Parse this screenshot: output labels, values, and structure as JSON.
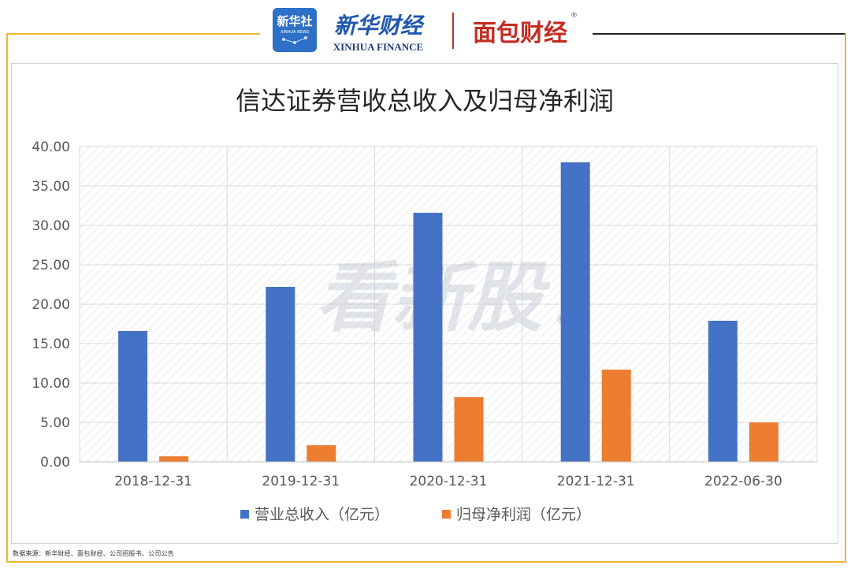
{
  "header": {
    "xinhua_agency_logo_text": "新华社",
    "xinhua_agency_logo_subtext": "XINHUA NEWS",
    "xinhua_finance_cn": "新华财经",
    "xinhua_finance_en": "XINHUA FINANCE",
    "mianbao_logo_text": "面包财经",
    "mianbao_logo_mark": "®"
  },
  "watermark": {
    "text": "看新股",
    "mark": "©"
  },
  "source_note": "数据来源：新华财经、面包财经、公司招股书、公司公告",
  "colors": {
    "frame": "#e8b931",
    "revenue": "#4472c4",
    "net_profit": "#ed7d31",
    "grid": "#d9d9d9",
    "hatch": "#e3e3e3"
  },
  "chart_data": {
    "type": "bar",
    "title": "信达证券营收总收入及归母净利润",
    "categories": [
      "2018-12-31",
      "2019-12-31",
      "2020-12-31",
      "2021-12-31",
      "2022-06-30"
    ],
    "series": [
      {
        "name": "营业总收入（亿元）",
        "values": [
          16.6,
          22.2,
          31.6,
          38.0,
          17.9
        ]
      },
      {
        "name": "归母净利润（亿元）",
        "values": [
          0.7,
          2.1,
          8.2,
          11.7,
          5.0
        ]
      }
    ],
    "ylim": [
      0,
      40
    ],
    "yticks": [
      "0.00",
      "5.00",
      "10.00",
      "15.00",
      "20.00",
      "25.00",
      "30.00",
      "35.00",
      "40.00"
    ],
    "grid": true,
    "legend": "bottom"
  }
}
